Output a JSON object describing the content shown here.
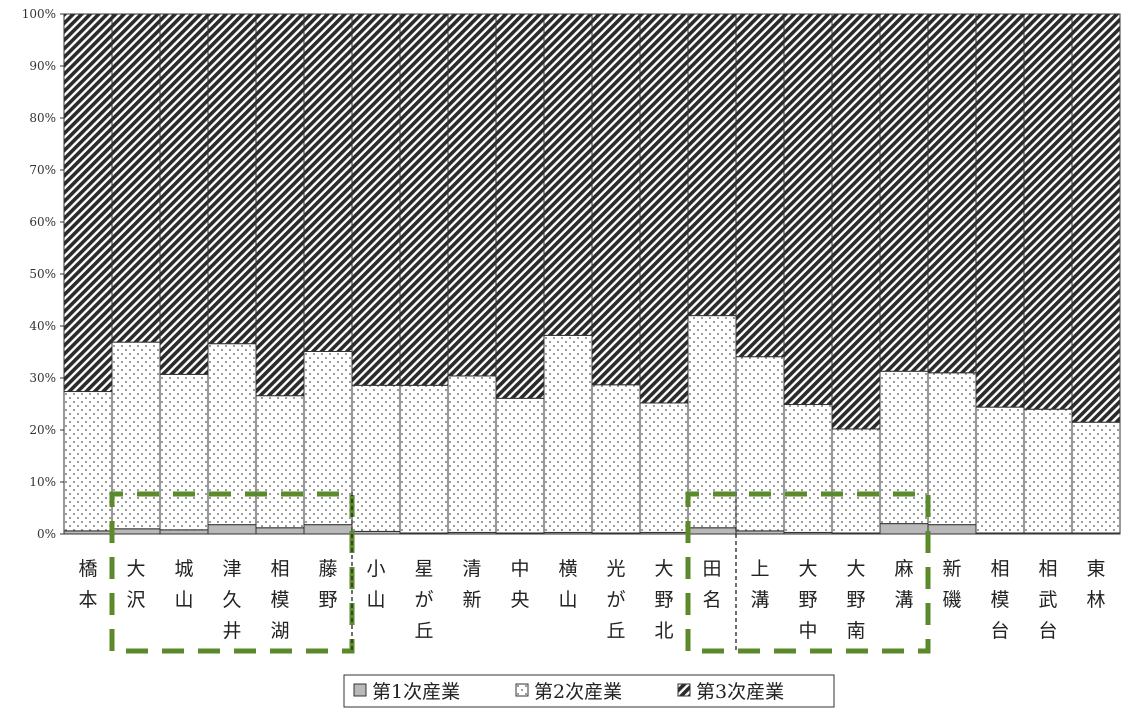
{
  "chart_data": {
    "type": "bar",
    "stacked": true,
    "normalized": true,
    "categories": [
      [
        "橋",
        "本"
      ],
      [
        "大",
        "沢"
      ],
      [
        "城",
        "山"
      ],
      [
        "津",
        "久",
        "井"
      ],
      [
        "相",
        "模",
        "湖"
      ],
      [
        "藤",
        "野"
      ],
      [
        "小",
        "山"
      ],
      [
        "星",
        "が",
        "丘"
      ],
      [
        "清",
        "新"
      ],
      [
        "中",
        "央"
      ],
      [
        "横",
        "山"
      ],
      [
        "光",
        "が",
        "丘"
      ],
      [
        "大",
        "野",
        "北"
      ],
      [
        "田",
        "名"
      ],
      [
        "上",
        "溝"
      ],
      [
        "大",
        "野",
        "中"
      ],
      [
        "大",
        "野",
        "南"
      ],
      [
        "麻",
        "溝"
      ],
      [
        "新",
        "磯"
      ],
      [
        "相",
        "模",
        "台"
      ],
      [
        "相",
        "武",
        "台"
      ],
      [
        "東",
        "林"
      ]
    ],
    "series": [
      {
        "name": "第1次産業",
        "values": [
          0.6,
          1.0,
          0.8,
          1.8,
          1.2,
          1.8,
          0.5,
          0.2,
          0.3,
          0.2,
          0.3,
          0.2,
          0.3,
          1.2,
          0.6,
          0.3,
          0.2,
          2.0,
          1.8,
          0.2,
          0.2,
          0.2
        ]
      },
      {
        "name": "第2次産業",
        "values": [
          26.8,
          35.9,
          29.9,
          34.8,
          25.4,
          33.3,
          28.1,
          28.4,
          30.1,
          25.9,
          37.9,
          28.5,
          24.9,
          40.8,
          33.5,
          24.6,
          20.0,
          29.3,
          29.2,
          24.2,
          23.8,
          21.3
        ]
      },
      {
        "name": "第3次産業",
        "values": [
          72.6,
          63.1,
          69.3,
          63.4,
          73.4,
          64.9,
          71.4,
          71.4,
          69.6,
          73.9,
          61.8,
          71.3,
          74.8,
          58.0,
          65.9,
          75.1,
          79.8,
          68.7,
          69.0,
          75.6,
          76.0,
          78.5
        ]
      }
    ],
    "ylim": [
      0,
      100
    ],
    "yticks": [
      "0%",
      "10%",
      "20%",
      "30%",
      "40%",
      "50%",
      "60%",
      "70%",
      "80%",
      "90%",
      "100%"
    ],
    "legend_position": "bottom",
    "groups": [
      {
        "from": 1,
        "to": 6,
        "color": "#5a8a2a"
      },
      {
        "from": 13,
        "to": 18,
        "color": "#5a8a2a"
      }
    ],
    "dividers": [
      6,
      14
    ]
  }
}
